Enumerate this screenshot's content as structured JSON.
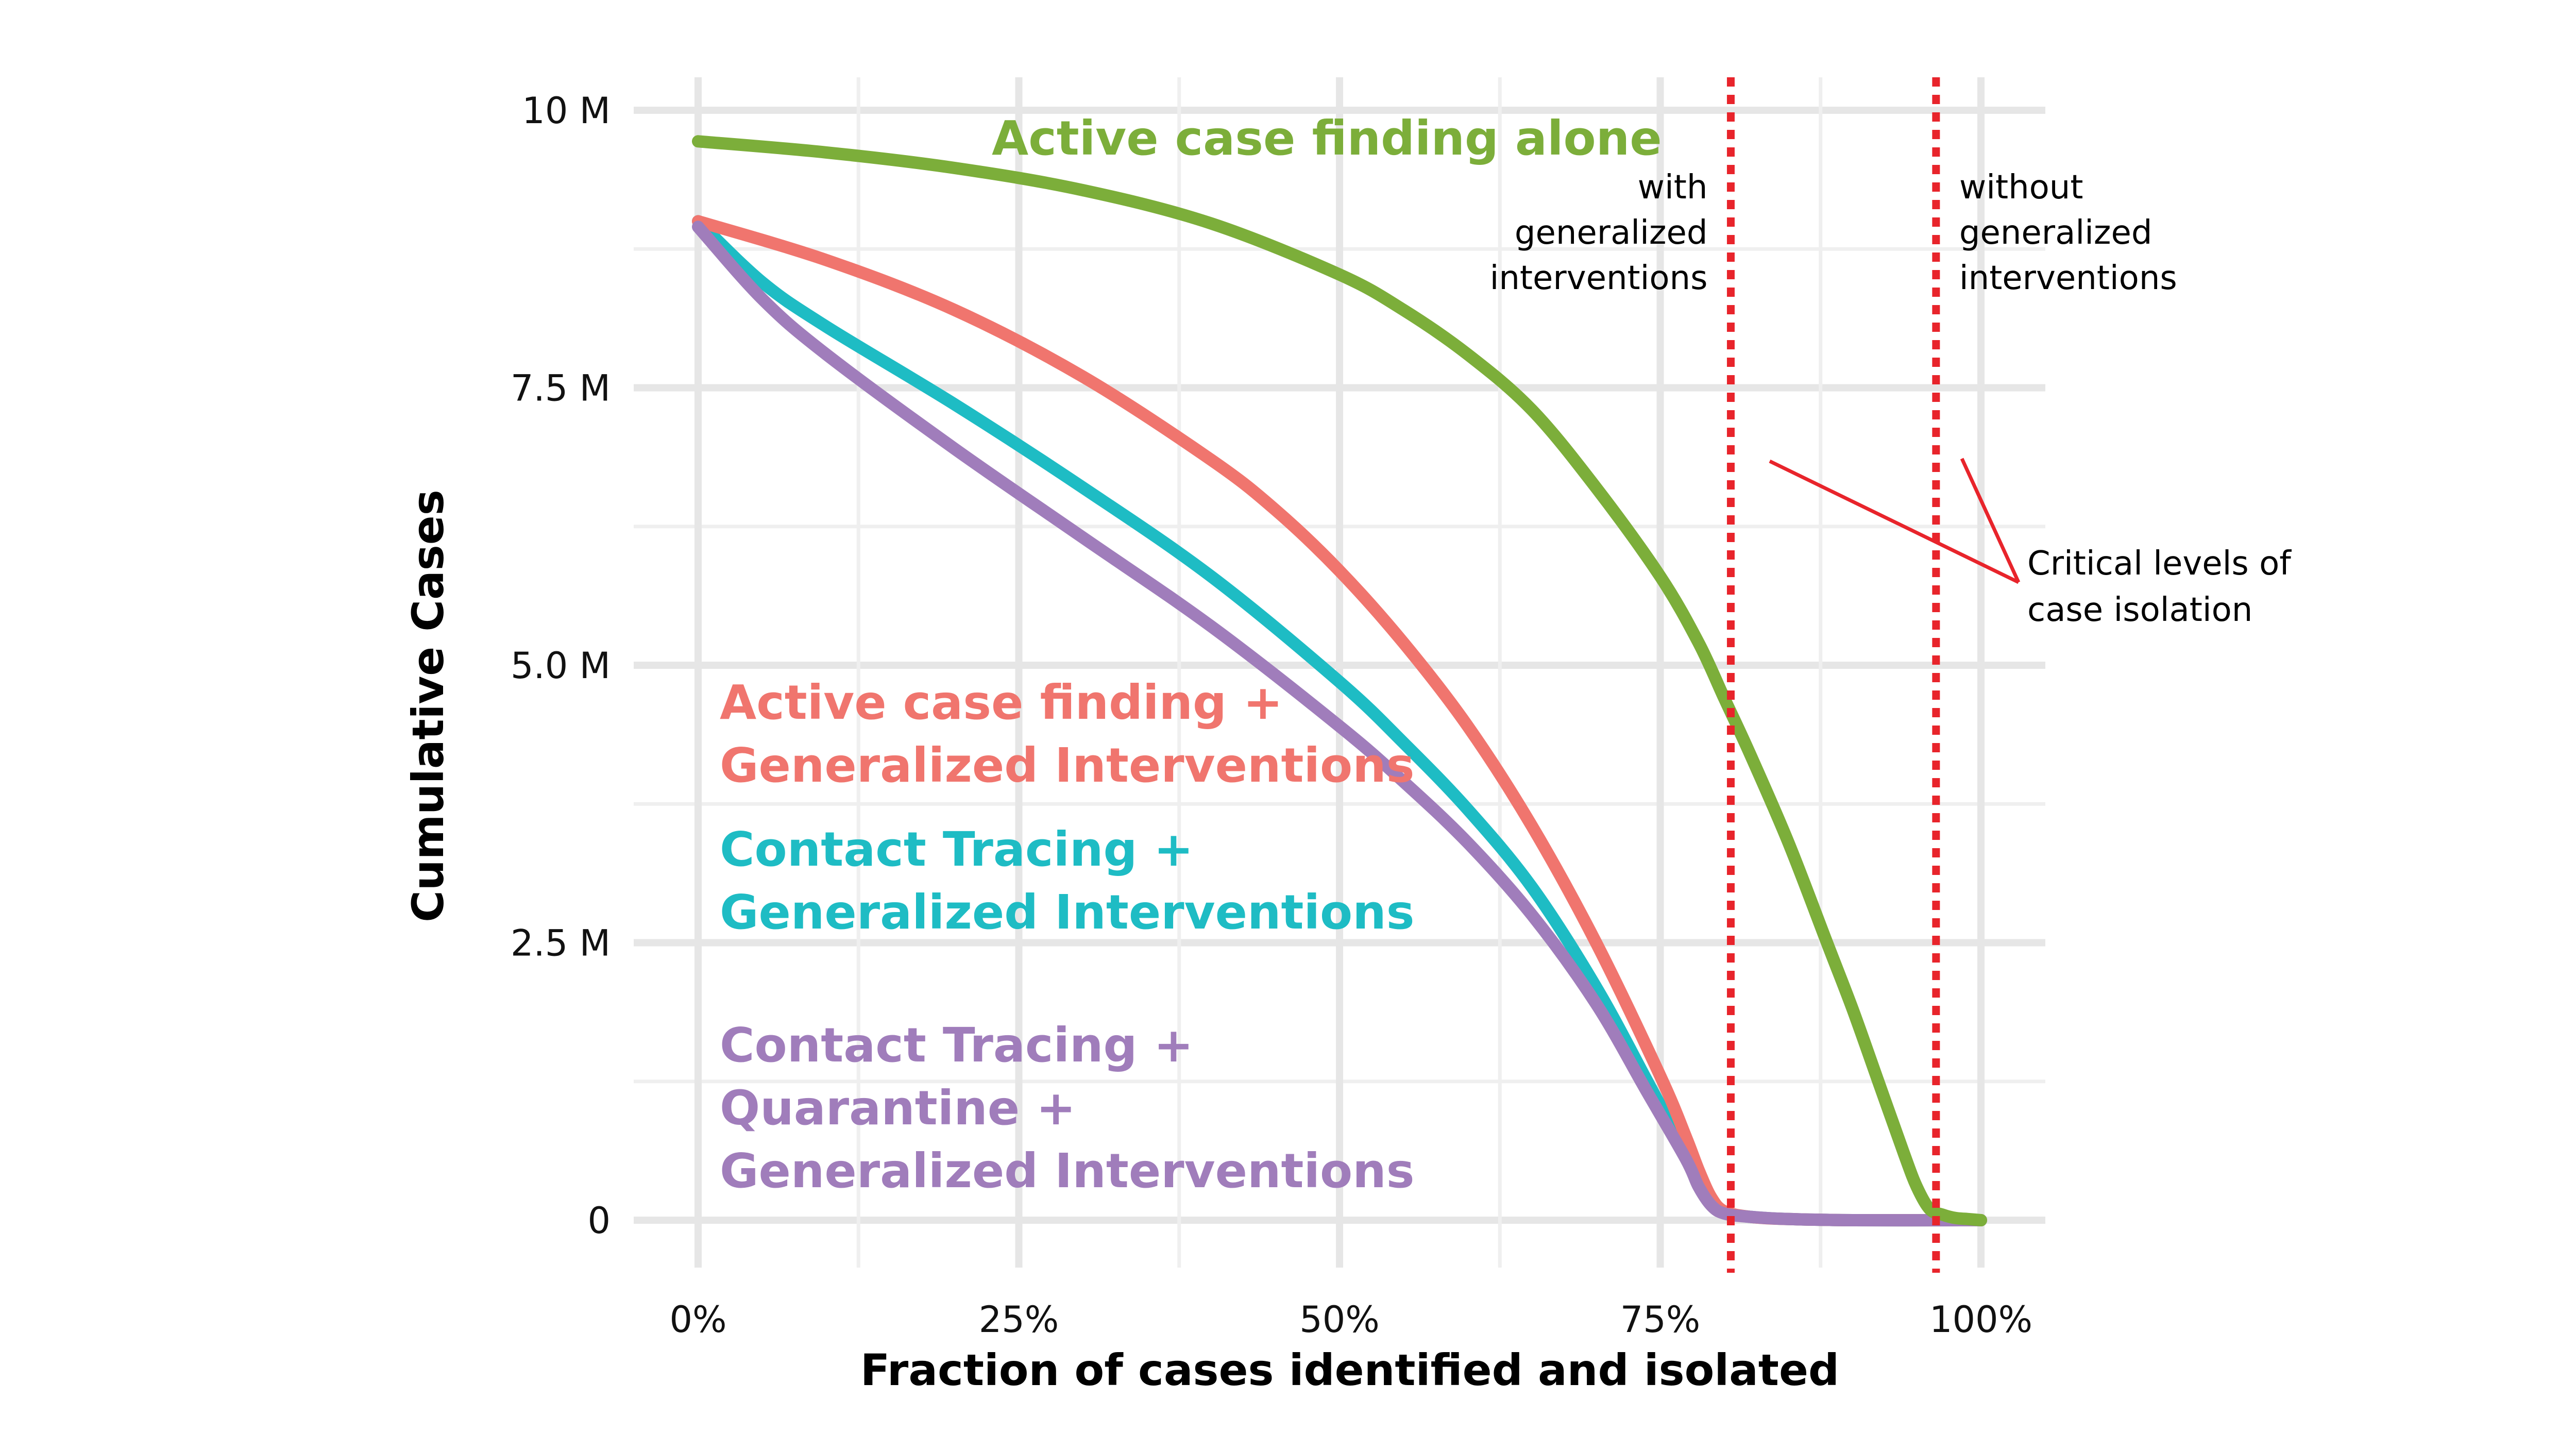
{
  "chart_data": {
    "type": "line",
    "xlabel": "Fraction of cases identified and isolated",
    "ylabel": "Cumulative Cases",
    "xlim": [
      0,
      100
    ],
    "ylim": [
      -0.9,
      10.6
    ],
    "x_ticks": [
      {
        "value": 0,
        "label": "0%"
      },
      {
        "value": 25,
        "label": "25%"
      },
      {
        "value": 50,
        "label": "50%"
      },
      {
        "value": 75,
        "label": "75%"
      },
      {
        "value": 100,
        "label": "100%"
      }
    ],
    "y_ticks": [
      {
        "value": 0,
        "label": "0"
      },
      {
        "value": 2.5,
        "label": "2.5 M"
      },
      {
        "value": 5.0,
        "label": "5.0 M"
      },
      {
        "value": 7.5,
        "label": "7.5 M"
      },
      {
        "value": 10,
        "label": "10 M"
      }
    ],
    "x_minor": [
      12.5,
      37.5,
      62.5,
      87.5
    ],
    "y_minor": [
      1.25,
      3.75,
      6.25,
      8.75
    ],
    "grid": true,
    "series": [
      {
        "name": "Active case finding alone",
        "color": "#7CAE3A",
        "x": [
          0,
          10,
          20,
          30,
          40,
          50,
          55,
          60,
          65,
          70,
          75,
          78,
          80,
          82,
          85,
          88,
          90,
          92,
          94,
          95,
          96,
          97,
          98,
          99,
          100
        ],
        "y": [
          9.72,
          9.62,
          9.48,
          9.28,
          8.98,
          8.52,
          8.2,
          7.8,
          7.3,
          6.6,
          5.8,
          5.2,
          4.7,
          4.2,
          3.4,
          2.5,
          1.9,
          1.25,
          0.6,
          0.3,
          0.1,
          0.05,
          0.02,
          0.01,
          0.0
        ]
      },
      {
        "name": "Active case finding + Generalized Interventions",
        "color": "#F0756E",
        "x": [
          0,
          10,
          20,
          30,
          40,
          45,
          50,
          55,
          60,
          65,
          70,
          75,
          77,
          78,
          79,
          80,
          82,
          85,
          90,
          100
        ],
        "y": [
          9.0,
          8.65,
          8.2,
          7.6,
          6.85,
          6.4,
          5.85,
          5.2,
          4.45,
          3.55,
          2.5,
          1.3,
          0.75,
          0.45,
          0.2,
          0.08,
          0.03,
          0.01,
          0.0,
          0.0
        ]
      },
      {
        "name": "Contact Tracing + Generalized Interventions",
        "color": "#1EBCC4",
        "x": [
          0,
          5,
          10,
          20,
          30,
          40,
          50,
          55,
          60,
          65,
          70,
          74,
          77,
          78,
          79,
          80,
          82,
          85,
          90,
          100
        ],
        "y": [
          9.0,
          8.45,
          8.05,
          7.35,
          6.6,
          5.8,
          4.85,
          4.3,
          3.7,
          3.0,
          2.1,
          1.25,
          0.6,
          0.35,
          0.15,
          0.07,
          0.03,
          0.01,
          0.0,
          0.0
        ]
      },
      {
        "name": "Contact Tracing + Quarantine + Generalized Interventions",
        "color": "#A07DBB",
        "x": [
          0,
          5,
          10,
          20,
          30,
          40,
          50,
          55,
          60,
          65,
          70,
          74,
          77,
          78,
          79,
          80,
          82,
          85,
          90,
          100
        ],
        "y": [
          8.95,
          8.3,
          7.8,
          6.95,
          6.15,
          5.35,
          4.45,
          3.95,
          3.4,
          2.75,
          1.95,
          1.15,
          0.55,
          0.3,
          0.13,
          0.06,
          0.03,
          0.01,
          0.0,
          0.0
        ]
      }
    ],
    "series_labels": [
      {
        "color": "#7CAE3A",
        "lines": [
          "Active case finding alone"
        ]
      },
      {
        "color": "#F0756E",
        "lines": [
          "Active case finding +",
          "Generalized Interventions"
        ]
      },
      {
        "color": "#1EBCC4",
        "lines": [
          "Contact Tracing +",
          "Generalized Interventions"
        ]
      },
      {
        "color": "#A07DBB",
        "lines": [
          "Contact Tracing +",
          "Quarantine +",
          "Generalized Interventions"
        ]
      }
    ],
    "vlines": [
      {
        "x": 80.5,
        "color": "#E8242B",
        "style": "dotted",
        "label": [
          "with",
          "generalized",
          "interventions"
        ]
      },
      {
        "x": 96.5,
        "color": "#E8242B",
        "style": "dotted",
        "label": [
          "without",
          "generalized",
          "interventions"
        ]
      }
    ],
    "annotation": {
      "lines": [
        "Critical levels of",
        "case isolation"
      ],
      "color": "#E8242B"
    }
  }
}
